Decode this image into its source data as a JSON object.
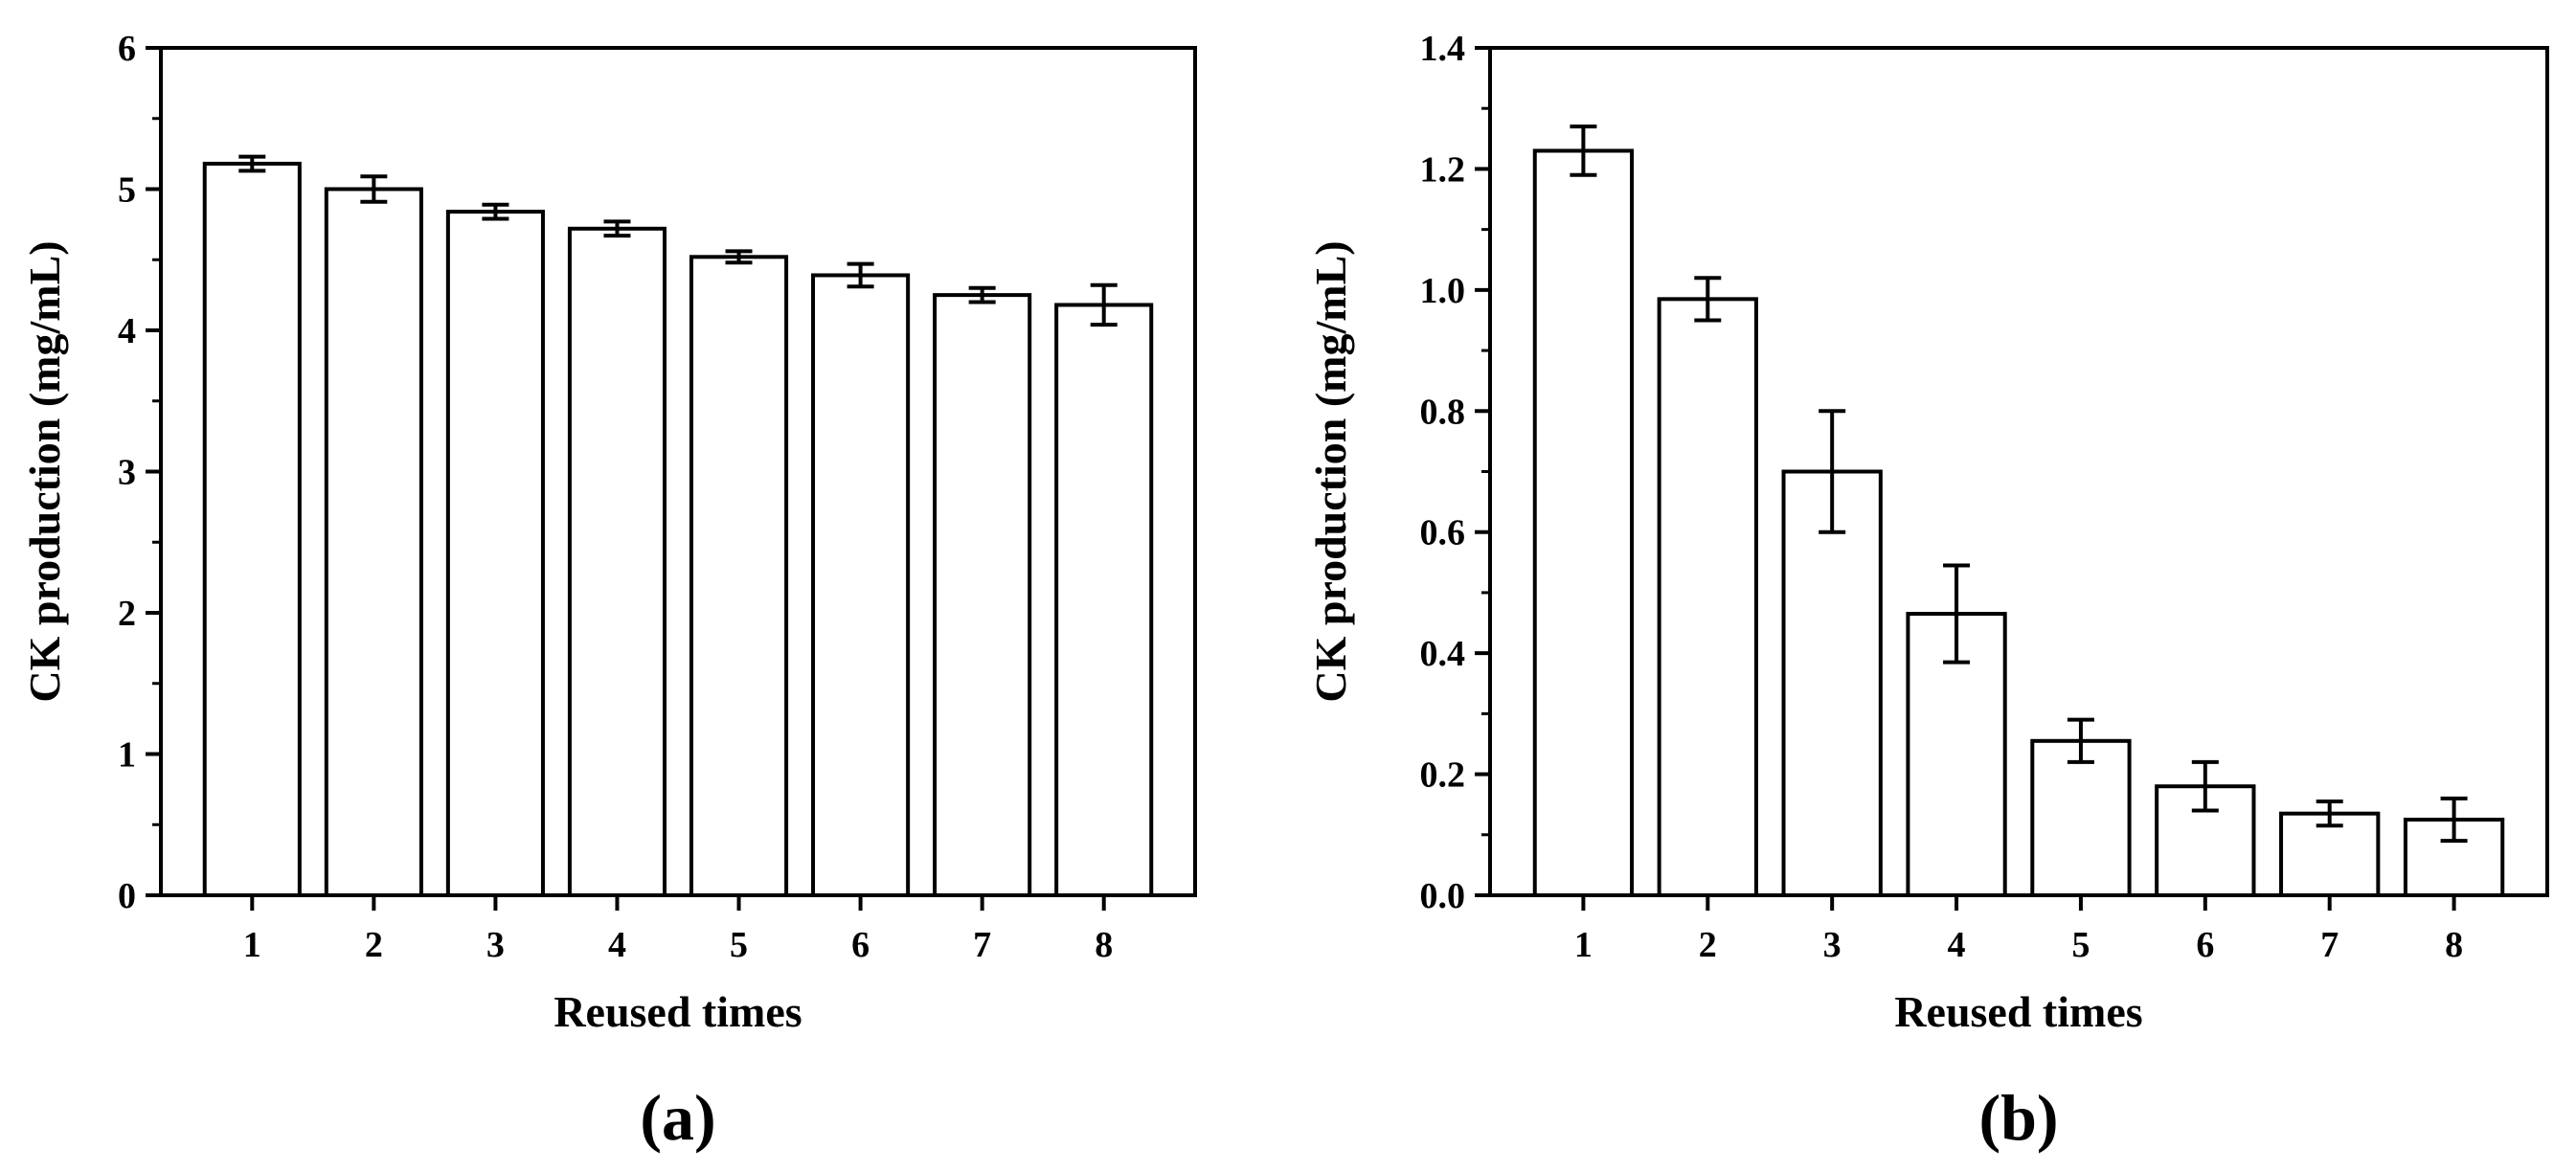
{
  "chart_data": [
    {
      "type": "bar",
      "panel_label": "(a)",
      "title": "",
      "xlabel": "Reused times",
      "ylabel": "CK production (mg/mL)",
      "categories": [
        "1",
        "2",
        "3",
        "4",
        "5",
        "6",
        "7",
        "8"
      ],
      "values": [
        5.18,
        5.0,
        4.84,
        4.72,
        4.52,
        4.39,
        4.25,
        4.18
      ],
      "errors": [
        0.05,
        0.09,
        0.05,
        0.05,
        0.04,
        0.08,
        0.05,
        0.14
      ],
      "ylim": [
        0,
        6
      ],
      "yticks": [
        "0",
        "1",
        "2",
        "3",
        "4",
        "5",
        "6"
      ],
      "grid": false,
      "legend": "none"
    },
    {
      "type": "bar",
      "panel_label": "(b)",
      "title": "",
      "xlabel": "Reused times",
      "ylabel": "CK production (mg/mL)",
      "categories": [
        "1",
        "2",
        "3",
        "4",
        "5",
        "6",
        "7",
        "8"
      ],
      "values": [
        1.23,
        0.985,
        0.7,
        0.465,
        0.255,
        0.18,
        0.135,
        0.125
      ],
      "errors": [
        0.04,
        0.035,
        0.1,
        0.08,
        0.035,
        0.04,
        0.02,
        0.035
      ],
      "ylim": [
        0,
        1.4
      ],
      "yticks": [
        "0.0",
        "0.2",
        "0.4",
        "0.6",
        "0.8",
        "1.0",
        "1.2",
        "1.4"
      ],
      "grid": false,
      "legend": "none"
    }
  ],
  "colors": {
    "bar_fill": "#ffffff",
    "stroke": "#000000",
    "text": "#000000"
  }
}
